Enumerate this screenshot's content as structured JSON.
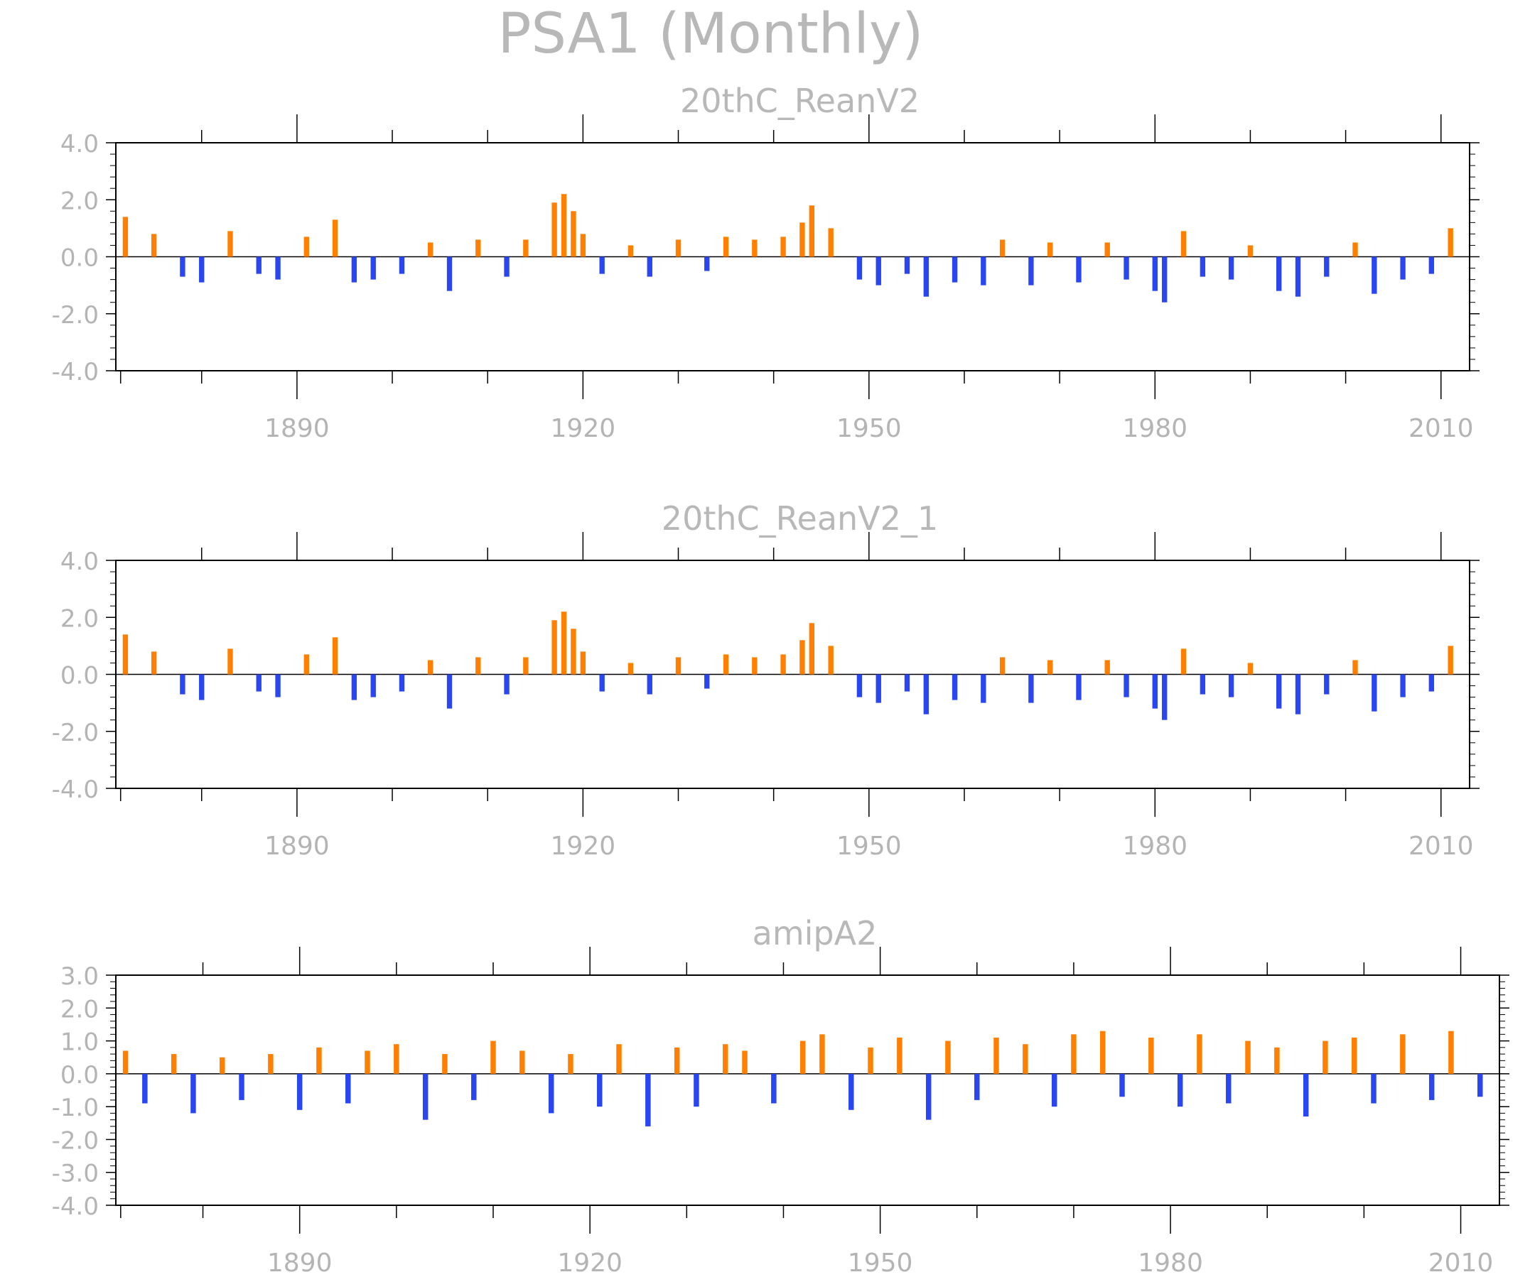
{
  "figure": {
    "title": "PSA1 (Monthly)"
  },
  "colors": {
    "positive": "#ff8000",
    "negative": "#2a46f0",
    "frame": "#000000",
    "text": "#b4b4b4"
  },
  "chart_data": [
    {
      "type": "bar",
      "title": "20thC_ReanV2",
      "x_unit": "year (monthly bars)",
      "xlim": [
        1871,
        2013
      ],
      "x_tick_labels": [
        "1890",
        "1920",
        "1950",
        "1980",
        "2010"
      ],
      "ylim": [
        -4.0,
        4.0
      ],
      "y_tick_labels": [
        "4.0",
        "2.0",
        "0.0",
        "-2.0",
        "-4.0"
      ],
      "grid": false,
      "x": [
        1872,
        1875,
        1878,
        1880,
        1883,
        1886,
        1888,
        1891,
        1894,
        1896,
        1898,
        1901,
        1904,
        1906,
        1909,
        1912,
        1914,
        1917,
        1918,
        1919,
        1920,
        1922,
        1925,
        1927,
        1930,
        1933,
        1935,
        1938,
        1941,
        1943,
        1944,
        1946,
        1949,
        1951,
        1954,
        1956,
        1959,
        1962,
        1964,
        1967,
        1969,
        1972,
        1975,
        1977,
        1980,
        1981,
        1983,
        1985,
        1988,
        1990,
        1993,
        1995,
        1998,
        2001,
        2003,
        2006,
        2009,
        2011
      ],
      "values": [
        1.4,
        0.8,
        -0.7,
        -0.9,
        0.9,
        -0.6,
        -0.8,
        0.7,
        1.3,
        -0.9,
        -0.8,
        -0.6,
        0.5,
        -1.2,
        0.6,
        -0.7,
        0.6,
        1.9,
        2.2,
        1.6,
        0.8,
        -0.6,
        0.4,
        -0.7,
        0.6,
        -0.5,
        0.7,
        0.6,
        0.7,
        1.2,
        1.8,
        1.0,
        -0.8,
        -1.0,
        -0.6,
        -1.4,
        -0.9,
        -1.0,
        0.6,
        -1.0,
        0.5,
        -0.9,
        0.5,
        -0.8,
        -1.2,
        -1.6,
        0.9,
        -0.7,
        -0.8,
        0.4,
        -1.2,
        -1.4,
        -0.7,
        0.5,
        -1.3,
        -0.8,
        -0.6,
        1.0
      ]
    },
    {
      "type": "bar",
      "title": "20thC_ReanV2_1",
      "x_unit": "year (monthly bars)",
      "xlim": [
        1871,
        2013
      ],
      "x_tick_labels": [
        "1890",
        "1920",
        "1950",
        "1980",
        "2010"
      ],
      "ylim": [
        -4.0,
        4.0
      ],
      "y_tick_labels": [
        "4.0",
        "2.0",
        "0.0",
        "-2.0",
        "-4.0"
      ],
      "grid": false,
      "x": [
        1872,
        1875,
        1878,
        1880,
        1883,
        1886,
        1888,
        1891,
        1894,
        1896,
        1898,
        1901,
        1904,
        1906,
        1909,
        1912,
        1914,
        1917,
        1918,
        1919,
        1920,
        1922,
        1925,
        1927,
        1930,
        1933,
        1935,
        1938,
        1941,
        1943,
        1944,
        1946,
        1949,
        1951,
        1954,
        1956,
        1959,
        1962,
        1964,
        1967,
        1969,
        1972,
        1975,
        1977,
        1980,
        1981,
        1983,
        1985,
        1988,
        1990,
        1993,
        1995,
        1998,
        2001,
        2003,
        2006,
        2009,
        2011
      ],
      "values": [
        1.4,
        0.8,
        -0.7,
        -0.9,
        0.9,
        -0.6,
        -0.8,
        0.7,
        1.3,
        -0.9,
        -0.8,
        -0.6,
        0.5,
        -1.2,
        0.6,
        -0.7,
        0.6,
        1.9,
        2.2,
        1.6,
        0.8,
        -0.6,
        0.4,
        -0.7,
        0.6,
        -0.5,
        0.7,
        0.6,
        0.7,
        1.2,
        1.8,
        1.0,
        -0.8,
        -1.0,
        -0.6,
        -1.4,
        -0.9,
        -1.0,
        0.6,
        -1.0,
        0.5,
        -0.9,
        0.5,
        -0.8,
        -1.2,
        -1.6,
        0.9,
        -0.7,
        -0.8,
        0.4,
        -1.2,
        -1.4,
        -0.7,
        0.5,
        -1.3,
        -0.8,
        -0.6,
        1.0
      ]
    },
    {
      "type": "bar",
      "title": "amipA2",
      "x_unit": "year (monthly bars)",
      "xlim": [
        1871,
        2014
      ],
      "x_tick_labels": [
        "1890",
        "1920",
        "1950",
        "1980",
        "2010"
      ],
      "ylim": [
        -4.0,
        3.0
      ],
      "y_tick_labels": [
        "3.0",
        "2.0",
        "1.0",
        "0.0",
        "-1.0",
        "-2.0",
        "-3.0",
        "-4.0"
      ],
      "grid": false,
      "x": [
        1872,
        1874,
        1877,
        1879,
        1882,
        1884,
        1887,
        1890,
        1892,
        1895,
        1897,
        1900,
        1903,
        1905,
        1908,
        1910,
        1913,
        1916,
        1918,
        1921,
        1923,
        1926,
        1929,
        1931,
        1934,
        1936,
        1939,
        1942,
        1944,
        1947,
        1949,
        1952,
        1955,
        1957,
        1960,
        1962,
        1965,
        1968,
        1970,
        1973,
        1975,
        1978,
        1981,
        1983,
        1986,
        1988,
        1991,
        1994,
        1996,
        1999,
        2001,
        2004,
        2007,
        2009,
        2012
      ],
      "values": [
        0.7,
        -0.9,
        0.6,
        -1.2,
        0.5,
        -0.8,
        0.6,
        -1.1,
        0.8,
        -0.9,
        0.7,
        0.9,
        -1.4,
        0.6,
        -0.8,
        1.0,
        0.7,
        -1.2,
        0.6,
        -1.0,
        0.9,
        -1.6,
        0.8,
        -1.0,
        0.9,
        0.7,
        -0.9,
        1.0,
        1.2,
        -1.1,
        0.8,
        1.1,
        -1.4,
        1.0,
        -0.8,
        1.1,
        0.9,
        -1.0,
        1.2,
        1.3,
        -0.7,
        1.1,
        -1.0,
        1.2,
        -0.9,
        1.0,
        0.8,
        -1.3,
        1.0,
        1.1,
        -0.9,
        1.2,
        -0.8,
        1.3,
        -0.7
      ]
    }
  ]
}
